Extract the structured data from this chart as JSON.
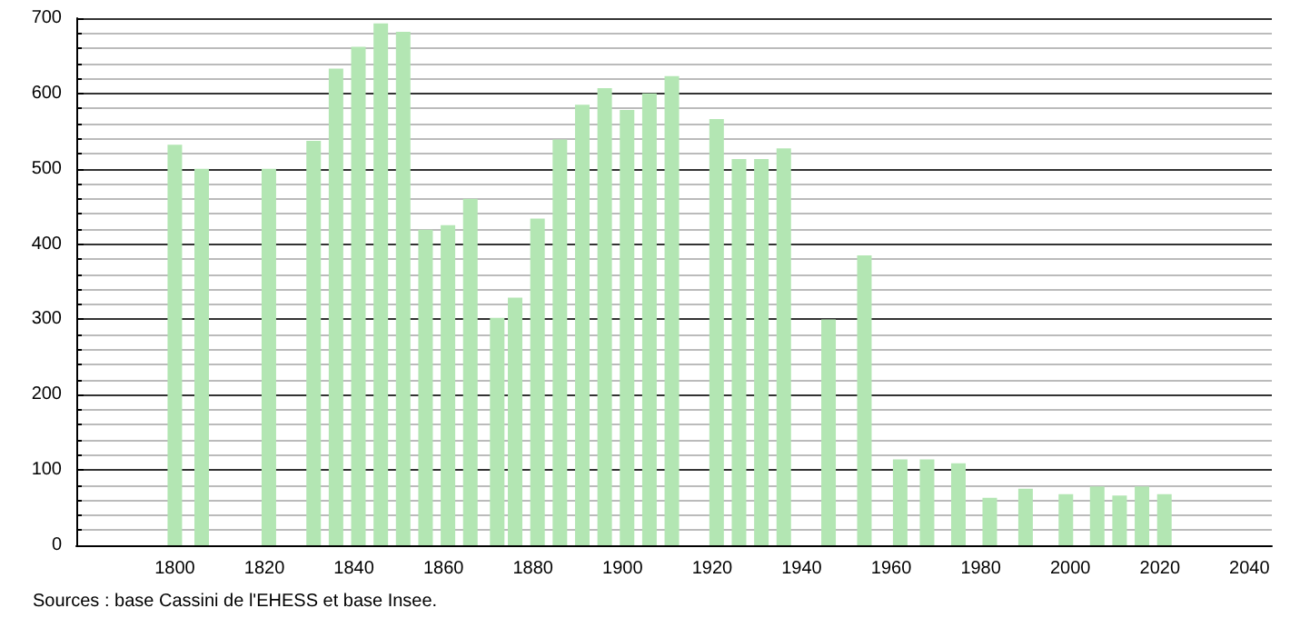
{
  "chart_data": {
    "type": "bar",
    "x": [
      1800,
      1806,
      1821,
      1831,
      1836,
      1841,
      1846,
      1851,
      1856,
      1861,
      1866,
      1872,
      1876,
      1881,
      1886,
      1891,
      1896,
      1901,
      1906,
      1911,
      1921,
      1926,
      1931,
      1936,
      1946,
      1954,
      1962,
      1968,
      1975,
      1982,
      1990,
      1999,
      2006,
      2011,
      2016,
      2021
    ],
    "values": [
      532,
      500,
      500,
      537,
      633,
      662,
      693,
      682,
      419,
      425,
      460,
      302,
      329,
      434,
      539,
      585,
      607,
      578,
      600,
      623,
      566,
      513,
      513,
      527,
      300,
      385,
      114,
      114,
      109,
      63,
      75,
      68,
      78,
      66,
      78,
      68
    ],
    "color": "#b3e6b3",
    "xlim": [
      1778,
      2045
    ],
    "xticks": [
      1800,
      1820,
      1840,
      1860,
      1880,
      1900,
      1920,
      1940,
      1960,
      1980,
      2000,
      2020,
      2040
    ],
    "ylim": [
      0,
      700
    ],
    "yticks": [
      0,
      100,
      200,
      300,
      400,
      500,
      600,
      700
    ],
    "grid": "y",
    "annotations": [
      "Sources : base Cassini de l'EHESS et base Insee."
    ]
  }
}
